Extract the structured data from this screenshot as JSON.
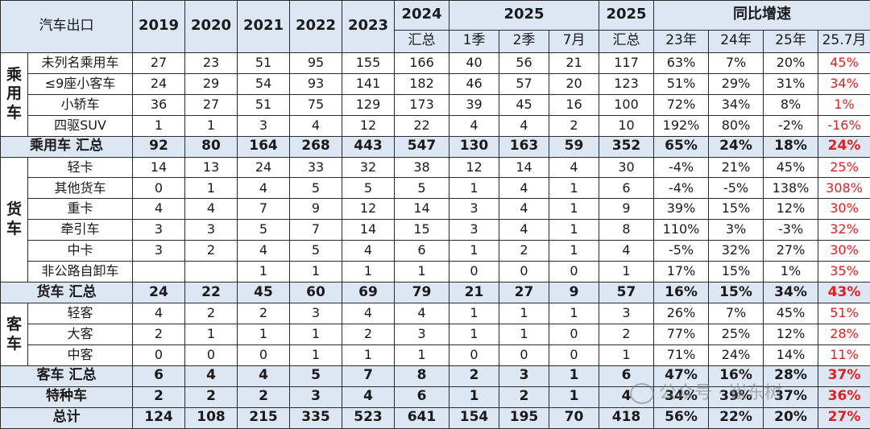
{
  "header": {
    "title": "汽车出口",
    "years": [
      "2019",
      "2020",
      "2021",
      "2022",
      "2023"
    ],
    "y2024_top": "2024",
    "y2024_bottom": "汇总",
    "y2025_group": "2025",
    "sub_q1": "1季",
    "sub_q2": "2季",
    "sub_jul": "7月",
    "y2025_top": "2025",
    "y2025_bottom": "汇总",
    "yoy_group": "同比增速",
    "yoy_cols": [
      "23年",
      "24年",
      "25年",
      "25.7月"
    ]
  },
  "categories": {
    "passenger": [
      "乘",
      "用",
      "车"
    ],
    "truck": [
      "货",
      "车"
    ],
    "bus": [
      "客",
      "车"
    ]
  },
  "passenger_rows": [
    {
      "name": "未列名乘用车",
      "v": [
        "27",
        "23",
        "51",
        "95",
        "155",
        "166",
        "40",
        "56",
        "21",
        "117",
        "63%",
        "7%",
        "20%",
        "45%"
      ]
    },
    {
      "name": "≤9座小客车",
      "v": [
        "24",
        "29",
        "54",
        "93",
        "141",
        "182",
        "46",
        "57",
        "20",
        "123",
        "51%",
        "29%",
        "31%",
        "34%"
      ]
    },
    {
      "name": "小轿车",
      "v": [
        "36",
        "27",
        "51",
        "75",
        "129",
        "173",
        "39",
        "45",
        "16",
        "100",
        "72%",
        "34%",
        "8%",
        "1%"
      ]
    },
    {
      "name": "四驱SUV",
      "v": [
        "1",
        "1",
        "3",
        "4",
        "12",
        "22",
        "4",
        "4",
        "2",
        "10",
        "192%",
        "80%",
        "-2%",
        "-16%"
      ]
    }
  ],
  "passenger_sum": {
    "name": "乘用车 汇总",
    "v": [
      "92",
      "80",
      "164",
      "268",
      "443",
      "547",
      "130",
      "163",
      "59",
      "352",
      "65%",
      "24%",
      "18%",
      "24%"
    ]
  },
  "truck_rows": [
    {
      "name": "轻卡",
      "v": [
        "14",
        "13",
        "24",
        "33",
        "32",
        "38",
        "12",
        "14",
        "4",
        "30",
        "-4%",
        "21%",
        "45%",
        "25%"
      ]
    },
    {
      "name": "其他货车",
      "v": [
        "0",
        "1",
        "4",
        "5",
        "5",
        "5",
        "1",
        "4",
        "1",
        "6",
        "-4%",
        "-5%",
        "138%",
        "308%"
      ]
    },
    {
      "name": "重卡",
      "v": [
        "4",
        "4",
        "7",
        "9",
        "12",
        "14",
        "3",
        "4",
        "1",
        "9",
        "39%",
        "15%",
        "12%",
        "30%"
      ]
    },
    {
      "name": "牵引车",
      "v": [
        "3",
        "3",
        "5",
        "7",
        "14",
        "15",
        "3",
        "4",
        "1",
        "8",
        "110%",
        "3%",
        "-3%",
        "32%"
      ]
    },
    {
      "name": "中卡",
      "v": [
        "3",
        "2",
        "4",
        "5",
        "4",
        "6",
        "1",
        "2",
        "1",
        "4",
        "-5%",
        "32%",
        "27%",
        "30%"
      ]
    },
    {
      "name": "非公路自卸车",
      "v": [
        "",
        "",
        "1",
        "1",
        "1",
        "1",
        "0",
        "0",
        "0",
        "1",
        "17%",
        "15%",
        "1%",
        "35%"
      ]
    }
  ],
  "truck_sum": {
    "name": "货车 汇总",
    "v": [
      "24",
      "22",
      "45",
      "60",
      "69",
      "79",
      "21",
      "27",
      "9",
      "57",
      "16%",
      "15%",
      "34%",
      "43%"
    ]
  },
  "bus_rows": [
    {
      "name": "轻客",
      "v": [
        "4",
        "2",
        "2",
        "3",
        "4",
        "4",
        "1",
        "1",
        "1",
        "3",
        "26%",
        "7%",
        "45%",
        "51%"
      ]
    },
    {
      "name": "大客",
      "v": [
        "2",
        "1",
        "1",
        "1",
        "2",
        "3",
        "1",
        "1",
        "0",
        "2",
        "77%",
        "25%",
        "12%",
        "28%"
      ]
    },
    {
      "name": "中客",
      "v": [
        "0",
        "0",
        "0",
        "1",
        "1",
        "1",
        "0",
        "0",
        "0",
        "1",
        "71%",
        "24%",
        "14%",
        "11%"
      ]
    }
  ],
  "bus_sum": {
    "name": "客车 汇总",
    "v": [
      "6",
      "4",
      "4",
      "5",
      "7",
      "8",
      "2",
      "3",
      "1",
      "6",
      "47%",
      "16%",
      "28%",
      "37%"
    ]
  },
  "special": {
    "name": "特种车",
    "v": [
      "2",
      "2",
      "2",
      "3",
      "4",
      "6",
      "1",
      "2",
      "1",
      "4",
      "34%",
      "39%",
      "37%",
      "36%"
    ]
  },
  "total": {
    "name": "总计",
    "v": [
      "124",
      "108",
      "215",
      "335",
      "523",
      "641",
      "154",
      "195",
      "70",
      "418",
      "56%",
      "22%",
      "20%",
      "27%"
    ]
  },
  "watermark": "公众号 · 崔东树",
  "colors": {
    "header_bg": "#dde6f3",
    "highlight_red": "#e02020"
  }
}
